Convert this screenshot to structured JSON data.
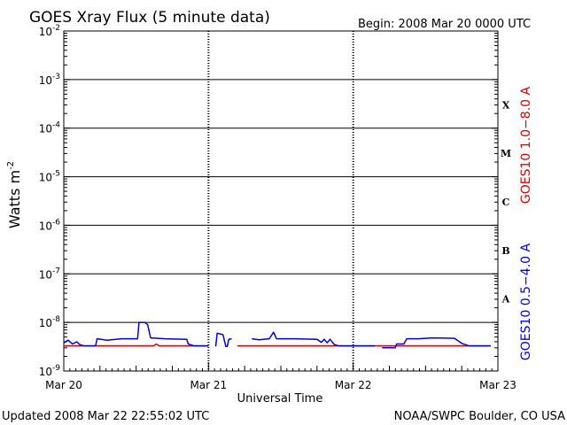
{
  "chart_data": {
    "type": "line",
    "title": "GOES Xray Flux (5 minute data)",
    "begin_label": "Begin:  2008 Mar 20 0000 UTC",
    "xlabel": "Universal Time",
    "ylabel_text": "Watts m",
    "ylabel_sup": "-2",
    "y_scale": "log",
    "ylim": [
      1e-09,
      0.01
    ],
    "grid": true,
    "x_ticks": [
      "Mar 20",
      "Mar 21",
      "Mar 22",
      "Mar 23"
    ],
    "y_ticks": [
      {
        "base": "10",
        "exp": "-2"
      },
      {
        "base": "10",
        "exp": "-3"
      },
      {
        "base": "10",
        "exp": "-4"
      },
      {
        "base": "10",
        "exp": "-5"
      },
      {
        "base": "10",
        "exp": "-6"
      },
      {
        "base": "10",
        "exp": "-7"
      },
      {
        "base": "10",
        "exp": "-8"
      },
      {
        "base": "10",
        "exp": "-9"
      }
    ],
    "flare_classes": [
      "X",
      "M",
      "C",
      "B",
      "A"
    ],
    "series": [
      {
        "name": "GOES10 1.0−8.0 A",
        "color": "#dd0000",
        "segments": [
          [
            [
              0.0,
              3.3e-09
            ],
            [
              0.62,
              3.3e-09
            ],
            [
              0.64,
              3.6e-09
            ],
            [
              0.66,
              3.3e-09
            ],
            [
              1.0,
              3.3e-09
            ]
          ],
          [
            [
              1.2,
              3.3e-09
            ],
            [
              2.95,
              3.3e-09
            ]
          ]
        ]
      },
      {
        "name": "GOES10 0.5−4.0 A",
        "color": "#0000dd",
        "segments": [
          [
            [
              0.0,
              3.8e-09
            ],
            [
              0.03,
              4.3e-09
            ],
            [
              0.06,
              3.6e-09
            ],
            [
              0.09,
              4e-09
            ],
            [
              0.11,
              3.5e-09
            ],
            [
              0.14,
              3.3e-09
            ],
            [
              0.22,
              3.3e-09
            ],
            [
              0.23,
              4.6e-09
            ],
            [
              0.3,
              4.3e-09
            ],
            [
              0.4,
              4.6e-09
            ],
            [
              0.5,
              4.6e-09
            ],
            [
              0.51,
              4.6e-09
            ],
            [
              0.52,
              1e-08
            ],
            [
              0.56,
              1e-08
            ],
            [
              0.58,
              9e-09
            ],
            [
              0.6,
              4.8e-09
            ],
            [
              0.7,
              4.6e-09
            ],
            [
              0.85,
              4.5e-09
            ],
            [
              0.86,
              3.6e-09
            ],
            [
              0.9,
              3.3e-09
            ],
            [
              1.0,
              3.3e-09
            ]
          ],
          [
            [
              1.05,
              3.2e-09
            ],
            [
              1.06,
              6e-09
            ],
            [
              1.1,
              5.6e-09
            ],
            [
              1.12,
              3.2e-09
            ],
            [
              1.13,
              3.2e-09
            ],
            [
              1.14,
              4.5e-09
            ],
            [
              1.16,
              4.6e-09
            ]
          ],
          [
            [
              1.3,
              4.6e-09
            ],
            [
              1.35,
              4.4e-09
            ],
            [
              1.42,
              4.6e-09
            ],
            [
              1.45,
              6.3e-09
            ],
            [
              1.47,
              4.6e-09
            ],
            [
              1.6,
              4.6e-09
            ],
            [
              1.75,
              4.5e-09
            ],
            [
              1.78,
              3.9e-09
            ],
            [
              1.8,
              4.5e-09
            ],
            [
              1.82,
              3.8e-09
            ],
            [
              1.84,
              4.5e-09
            ],
            [
              1.87,
              3.5e-09
            ],
            [
              1.9,
              3.3e-09
            ],
            [
              2.15,
              3.3e-09
            ]
          ],
          [
            [
              2.2,
              3e-09
            ],
            [
              2.29,
              3e-09
            ],
            [
              2.3,
              3.6e-09
            ],
            [
              2.35,
              3.6e-09
            ],
            [
              2.37,
              4.6e-09
            ],
            [
              2.45,
              4.6e-09
            ],
            [
              2.55,
              4.8e-09
            ],
            [
              2.7,
              4.7e-09
            ],
            [
              2.75,
              3.7e-09
            ],
            [
              2.8,
              3.3e-09
            ],
            [
              2.95,
              3.3e-09
            ]
          ]
        ]
      }
    ]
  },
  "footer": {
    "updated": "Updated 2008 Mar 22 22:55:02 UTC",
    "credit": "NOAA/SWPC Boulder, CO USA"
  }
}
